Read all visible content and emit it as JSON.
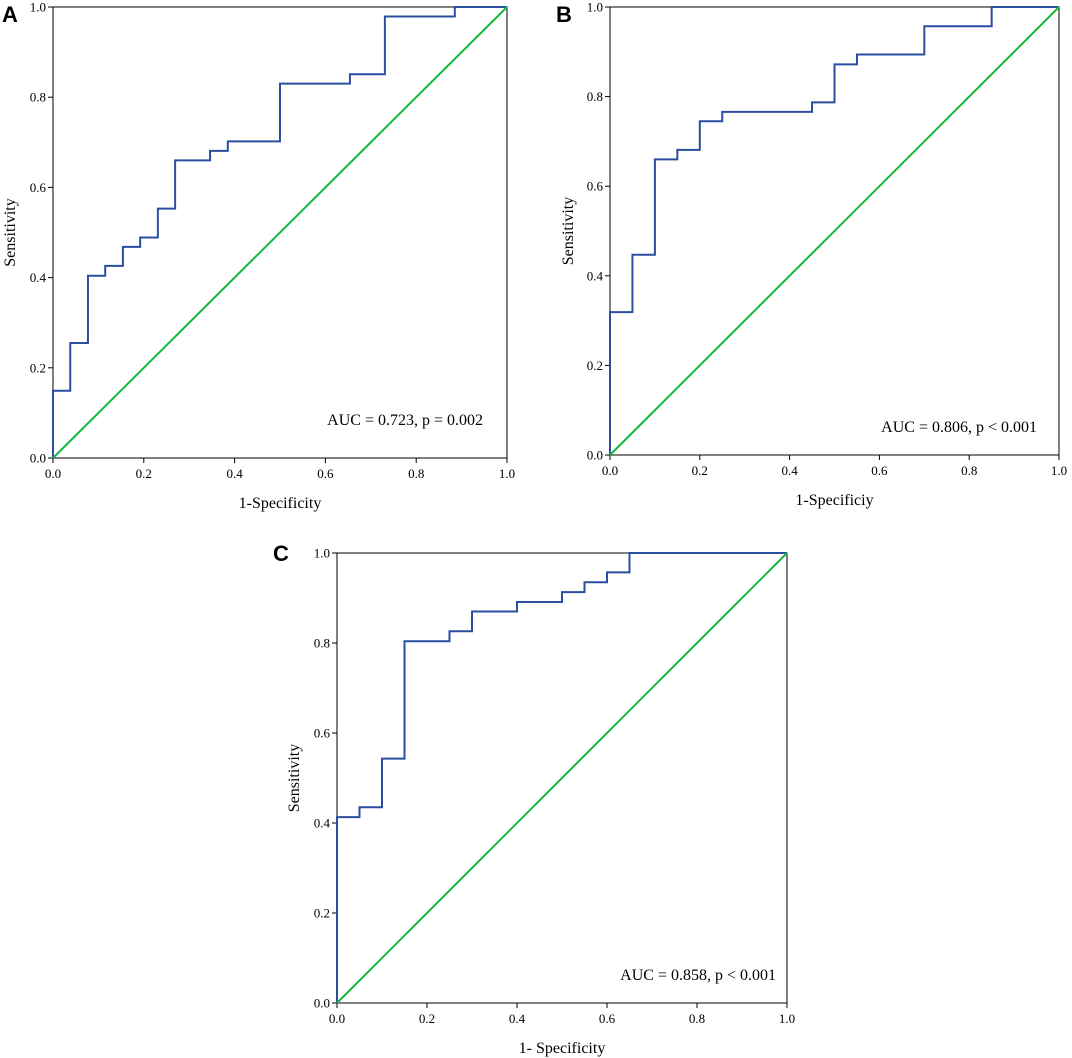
{
  "colors": {
    "roc": "#2a4fa0",
    "reference": "#16b83c",
    "axes": "#000000"
  },
  "chart_data": [
    {
      "type": "line",
      "panel": "A",
      "xlabel": "1-Specificity",
      "ylabel": "Sensitivity",
      "xlim": [
        0,
        1
      ],
      "ylim": [
        0,
        1
      ],
      "x_ticks": [
        "0.0",
        "0.2",
        "0.4",
        "0.6",
        "0.8",
        "1.0"
      ],
      "y_ticks": [
        "0.0",
        "0.2",
        "0.4",
        "0.6",
        "0.8",
        "1.0"
      ],
      "annotation": "AUC = 0.723, p = 0.002",
      "series": [
        {
          "name": "ROC",
          "x": [
            0,
            0,
            0.038,
            0.038,
            0.077,
            0.077,
            0.115,
            0.115,
            0.154,
            0.154,
            0.192,
            0.192,
            0.231,
            0.231,
            0.269,
            0.269,
            0.346,
            0.346,
            0.385,
            0.385,
            0.5,
            0.5,
            0.654,
            0.654,
            0.731,
            0.731,
            0.885,
            0.885,
            1.0
          ],
          "y": [
            0,
            0.149,
            0.149,
            0.255,
            0.255,
            0.404,
            0.404,
            0.426,
            0.426,
            0.468,
            0.468,
            0.489,
            0.489,
            0.553,
            0.553,
            0.66,
            0.66,
            0.681,
            0.681,
            0.702,
            0.702,
            0.83,
            0.83,
            0.851,
            0.851,
            0.979,
            0.979,
            1.0,
            1.0
          ]
        },
        {
          "name": "Reference line",
          "x": [
            0,
            1
          ],
          "y": [
            0,
            1
          ]
        }
      ]
    },
    {
      "type": "line",
      "panel": "B",
      "xlabel": "1-Specificiy",
      "ylabel": "Sensitivity",
      "xlim": [
        0,
        1
      ],
      "ylim": [
        0,
        1
      ],
      "x_ticks": [
        "0.0",
        "0.2",
        "0.4",
        "0.6",
        "0.8",
        "1.0"
      ],
      "y_ticks": [
        "0.0",
        "0.2",
        "0.4",
        "0.6",
        "0.8",
        "1.0"
      ],
      "annotation": "AUC = 0.806, p < 0.001",
      "series": [
        {
          "name": "ROC",
          "x": [
            0,
            0,
            0.05,
            0.05,
            0.1,
            0.1,
            0.15,
            0.15,
            0.2,
            0.2,
            0.25,
            0.25,
            0.45,
            0.45,
            0.5,
            0.5,
            0.55,
            0.55,
            0.7,
            0.7,
            0.85,
            0.85,
            1.0
          ],
          "y": [
            0,
            0.319,
            0.319,
            0.447,
            0.447,
            0.66,
            0.66,
            0.681,
            0.681,
            0.745,
            0.745,
            0.766,
            0.766,
            0.787,
            0.787,
            0.872,
            0.872,
            0.894,
            0.894,
            0.957,
            0.957,
            1.0,
            1.0
          ]
        },
        {
          "name": "Reference line",
          "x": [
            0,
            1
          ],
          "y": [
            0,
            1
          ]
        }
      ]
    },
    {
      "type": "line",
      "panel": "C",
      "xlabel": "1- Specificity",
      "ylabel": "Sensitivity",
      "xlim": [
        0,
        1
      ],
      "ylim": [
        0,
        1
      ],
      "x_ticks": [
        "0.0",
        "0.2",
        "0.4",
        "0.6",
        "0.8",
        "1.0"
      ],
      "y_ticks": [
        "0.0",
        "0.2",
        "0.4",
        "0.6",
        "0.8",
        "1.0"
      ],
      "annotation": "AUC = 0.858, p < 0.001",
      "series": [
        {
          "name": "ROC",
          "x": [
            0,
            0,
            0.05,
            0.05,
            0.1,
            0.1,
            0.15,
            0.15,
            0.25,
            0.25,
            0.3,
            0.3,
            0.4,
            0.4,
            0.5,
            0.5,
            0.55,
            0.55,
            0.6,
            0.6,
            0.65,
            0.65,
            1.0
          ],
          "y": [
            0,
            0.413,
            0.413,
            0.435,
            0.435,
            0.543,
            0.543,
            0.804,
            0.804,
            0.826,
            0.826,
            0.87,
            0.87,
            0.891,
            0.891,
            0.913,
            0.913,
            0.935,
            0.935,
            0.957,
            0.957,
            1.0,
            1.0
          ]
        },
        {
          "name": "Reference line",
          "x": [
            0,
            1
          ],
          "y": [
            0,
            1
          ]
        }
      ]
    }
  ]
}
